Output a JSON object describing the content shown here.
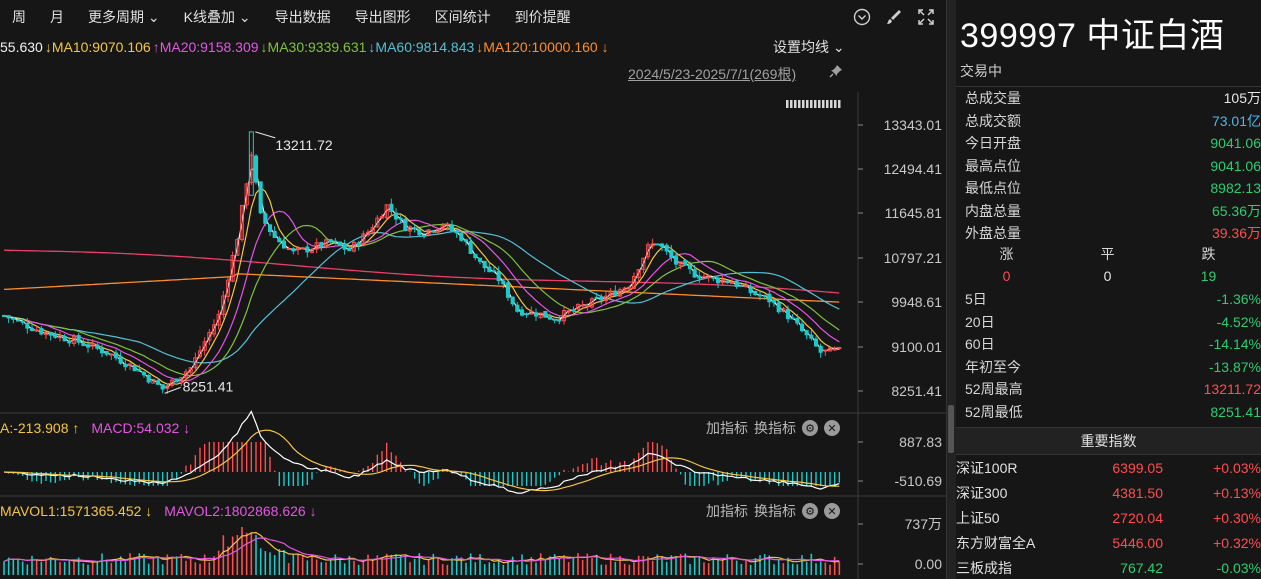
{
  "toolbar": {
    "items": [
      "周",
      "月",
      "更多周期 ⌄",
      "K线叠加 ⌄",
      "导出数据",
      "导出图形",
      "区间统计",
      "到价提醒"
    ],
    "icons": [
      "chevron-circle-icon",
      "brush-icon",
      "fullscreen-icon"
    ]
  },
  "ma_legend": [
    {
      "text": "55.630",
      "color": "#f0f0f0"
    },
    {
      "text": "↓MA10:9070.106",
      "color": "#f5c542"
    },
    {
      "text": "↑MA20:9158.309",
      "color": "#e356e3"
    },
    {
      "text": "↓MA30:9339.631",
      "color": "#7fc23a"
    },
    {
      "text": "↓MA60:9814.843",
      "color": "#54c0d8"
    },
    {
      "text": "↓MA120:10000.160 ↓",
      "color": "#ff8c2a"
    }
  ],
  "ma_settings": "设置均线 ⌄",
  "date_range": "2024/5/23-2025/7/1(269根)",
  "main_axis": [
    "13343.01",
    "12494.41",
    "11645.81",
    "10797.21",
    "9948.61",
    "9100.01",
    "8251.41"
  ],
  "annotations": {
    "high": "13211.72",
    "low": "8251.41"
  },
  "macd": {
    "legend": [
      {
        "text": "A:-213.908 ↑",
        "color": "#f5c542"
      },
      {
        "text": "MACD:54.032 ↓",
        "color": "#e356e3"
      }
    ],
    "axis": [
      "887.83",
      "-510.69"
    ]
  },
  "vol": {
    "legend": [
      {
        "text": "MAVOL1:1571365.452 ↓",
        "color": "#f5c542"
      },
      {
        "text": "MAVOL2:1802868.626 ↓",
        "color": "#e356e3"
      }
    ],
    "axis": [
      "737万",
      "0.00"
    ]
  },
  "indicator_controls": {
    "add": "加指标",
    "swap": "换指标"
  },
  "quote": {
    "title": "399997 中证白酒",
    "status": "交易中",
    "stats": [
      {
        "label": "总成交量",
        "value": "105万",
        "color": "white"
      },
      {
        "label": "总成交额",
        "value": "73.01亿",
        "color": "cyan"
      },
      {
        "label": "今日开盘",
        "value": "9041.06",
        "color": "green"
      },
      {
        "label": "最高点位",
        "value": "9041.06",
        "color": "green"
      },
      {
        "label": "最低点位",
        "value": "8982.13",
        "color": "green"
      },
      {
        "label": "内盘总量",
        "value": "65.36万",
        "color": "green"
      },
      {
        "label": "外盘总量",
        "value": "39.36万",
        "color": "red"
      }
    ],
    "breadth": {
      "labels": [
        "涨",
        "平",
        "跌"
      ],
      "values": [
        "0",
        "0",
        "19"
      ]
    },
    "perf": [
      {
        "label": "5日",
        "value": "-1.36%",
        "color": "green"
      },
      {
        "label": "20日",
        "value": "-4.52%",
        "color": "green"
      },
      {
        "label": "60日",
        "value": "-14.14%",
        "color": "green"
      },
      {
        "label": "年初至今",
        "value": "-13.87%",
        "color": "green"
      },
      {
        "label": "52周最高",
        "value": "13211.72",
        "color": "red"
      },
      {
        "label": "52周最低",
        "value": "8251.41",
        "color": "green"
      }
    ]
  },
  "index_header": "重要指数",
  "indices": [
    {
      "name": "深证100R",
      "price": "6399.05",
      "change": "+0.03%",
      "color": "red"
    },
    {
      "name": "深证300",
      "price": "4381.50",
      "change": "+0.13%",
      "color": "red"
    },
    {
      "name": "上证50",
      "price": "2720.04",
      "change": "+0.30%",
      "color": "red"
    },
    {
      "name": "东方财富全A",
      "price": "5446.00",
      "change": "+0.32%",
      "color": "red"
    },
    {
      "name": "三板成指",
      "price": "767.42",
      "change": "-0.03%",
      "color": "green"
    }
  ],
  "colors": {
    "up": "#ff4d4f",
    "down": "#1fc9c9",
    "ma5": "#ffffff",
    "ma10": "#f5c542",
    "ma20": "#e356e3",
    "ma30": "#7fc23a",
    "ma60": "#54c0d8",
    "ma120": "#ff8c2a",
    "ma250": "#e8406a"
  }
}
